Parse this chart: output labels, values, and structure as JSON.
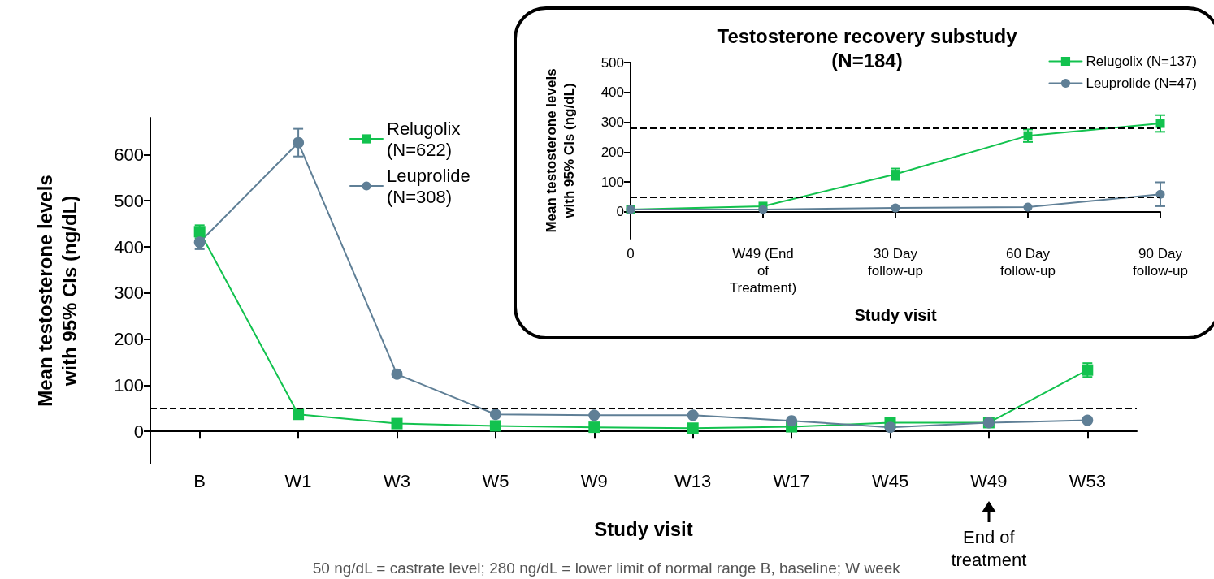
{
  "chart_data": [
    {
      "type": "line",
      "xlabel": "Study visit",
      "ylabel": "Mean testosterone levels with 95% CIs (ng/dL)",
      "categories": [
        "B",
        "W1",
        "W3",
        "W5",
        "W9",
        "W13",
        "W17",
        "W45",
        "W49",
        "W53"
      ],
      "ylim": [
        -70,
        680
      ],
      "yticks": [
        0,
        100,
        200,
        300,
        400,
        500,
        600
      ],
      "series": [
        {
          "name": "Relugolix (N=622)",
          "color": "#12c24e",
          "marker": "square",
          "values": [
            433,
            37,
            17,
            12,
            9,
            7,
            10,
            19,
            19,
            133
          ],
          "errors": [
            14,
            null,
            null,
            null,
            null,
            null,
            null,
            null,
            null,
            15
          ]
        },
        {
          "name": "Leuprolide (N=308)",
          "color": "#5f7f96",
          "marker": "circle",
          "values": [
            410,
            626,
            124,
            37,
            35,
            35,
            23,
            9,
            19,
            24
          ],
          "errors": [
            15,
            30,
            5,
            null,
            null,
            null,
            null,
            null,
            null,
            null
          ]
        }
      ],
      "ref_lines": [
        {
          "axis": "y",
          "value": 50,
          "line_style": "dashed",
          "color": "#000000"
        }
      ],
      "legend": "top left",
      "annotations": [
        {
          "text": "End of treatment",
          "x": "W49"
        },
        "50 ng/dL = castrate level; 280 ng/dL = lower limit of normal range B, baseline; W week"
      ]
    },
    {
      "type": "line",
      "title": "Testosterone recovery substudy (N=184)",
      "xlabel": "Study visit",
      "ylabel": "Mean testosterone levels with 95% CIs (ng/dL)",
      "categories": [
        "0",
        "W49 (End of Treatment)",
        "30 Day follow-up",
        "60 Day follow-up",
        "90 Day follow-up"
      ],
      "ylim": [
        -90,
        500
      ],
      "yticks": [
        0,
        100,
        200,
        300,
        400,
        500
      ],
      "series": [
        {
          "name": "Relugolix (N=137)",
          "color": "#12c24e",
          "marker": "square",
          "values": [
            8,
            19,
            126,
            255,
            296
          ],
          "errors": [
            null,
            null,
            19,
            21,
            28
          ]
        },
        {
          "name": "Leuprolide (N=47)",
          "color": "#5f7f96",
          "marker": "circle",
          "values": [
            8,
            8,
            13,
            16,
            59
          ],
          "errors": [
            null,
            null,
            null,
            null,
            40
          ]
        }
      ],
      "ref_lines": [
        {
          "axis": "y",
          "value": 280,
          "line_style": "dashed",
          "color": "#000000"
        },
        {
          "axis": "y",
          "value": 50,
          "line_style": "dashed",
          "color": "#000000"
        }
      ],
      "legend": "top right"
    }
  ]
}
